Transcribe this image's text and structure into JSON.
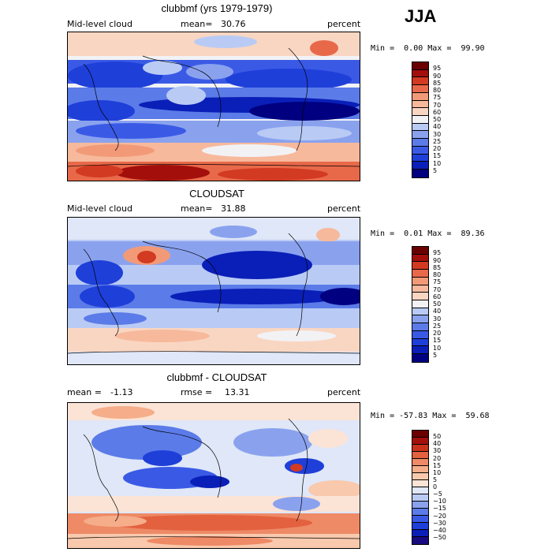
{
  "season": "JJA",
  "palette": {
    "levels14": [
      "#000080",
      "#0a1fb8",
      "#1f3fd9",
      "#3a5ae6",
      "#5b7be8",
      "#8aa2ee",
      "#b9cbf5",
      "#f2f2f5",
      "#f9d6c2",
      "#f7b99c",
      "#f29a78",
      "#e8694a",
      "#d23a22",
      "#a30f0b",
      "#6b0000"
    ],
    "diff": [
      "#1a0a80",
      "#0a1fb8",
      "#1f3fd9",
      "#3a5ae6",
      "#5b7be8",
      "#8aa2ee",
      "#b9cbf5",
      "#dfe7f8",
      "#fbe3d6",
      "#f9c9ad",
      "#f5ad8a",
      "#ee8a66",
      "#e3613f",
      "#c8321b",
      "#a30f0b",
      "#6b0000"
    ]
  },
  "panels": [
    {
      "id": "model",
      "title": "clubbmf (yrs 1979-1979)",
      "left_label": "Mid-level cloud",
      "stat_label": "mean=",
      "stat_value": "30.76",
      "units": "percent",
      "min_label": "Min =",
      "min_value": "0.00",
      "max_label": "Max =",
      "max_value": "99.90"
    },
    {
      "id": "obs",
      "title": "CLOUDSAT",
      "left_label": "Mid-level cloud",
      "stat_label": "mean=",
      "stat_value": "31.88",
      "units": "percent",
      "min_label": "Min =",
      "min_value": "0.01",
      "max_label": "Max =",
      "max_value": "89.36"
    },
    {
      "id": "diff",
      "title": "clubbmf - CLOUDSAT",
      "left_label": "mean =",
      "left_value": "-1.13",
      "stat_label": "rmse =",
      "stat_value": "13.31",
      "units": "percent",
      "min_label": "Min =",
      "min_value": "-57.83",
      "max_label": "Max =",
      "max_value": "59.68"
    }
  ],
  "chart_data": [
    {
      "type": "heatmap",
      "title": "clubbmf (yrs 1979-1979)",
      "variable": "Mid-level cloud",
      "units": "percent",
      "mean": 30.76,
      "min": 0.0,
      "max": 99.9,
      "colorbar_levels": [
        5,
        10,
        15,
        20,
        25,
        30,
        40,
        50,
        60,
        70,
        75,
        80,
        85,
        90,
        95
      ]
    },
    {
      "type": "heatmap",
      "title": "CLOUDSAT",
      "variable": "Mid-level cloud",
      "units": "percent",
      "mean": 31.88,
      "min": 0.01,
      "max": 89.36,
      "colorbar_levels": [
        5,
        10,
        15,
        20,
        25,
        30,
        40,
        50,
        60,
        70,
        75,
        80,
        85,
        90,
        95
      ]
    },
    {
      "type": "heatmap",
      "title": "clubbmf - CLOUDSAT",
      "units": "percent",
      "mean": -1.13,
      "rmse": 13.31,
      "min": -57.83,
      "max": 59.68,
      "colorbar_levels": [
        -50,
        -40,
        -30,
        -20,
        -15,
        -10,
        -5,
        0,
        5,
        10,
        15,
        20,
        30,
        40,
        50
      ]
    }
  ],
  "colorbars": {
    "levels14_labels": [
      "95",
      "90",
      "85",
      "80",
      "75",
      "70",
      "60",
      "50",
      "40",
      "30",
      "25",
      "20",
      "15",
      "10",
      "5"
    ],
    "diff_labels": [
      "50",
      "40",
      "30",
      "20",
      "15",
      "10",
      "5",
      "0",
      "−5",
      "−10",
      "−15",
      "−20",
      "−30",
      "−40",
      "−50"
    ]
  }
}
